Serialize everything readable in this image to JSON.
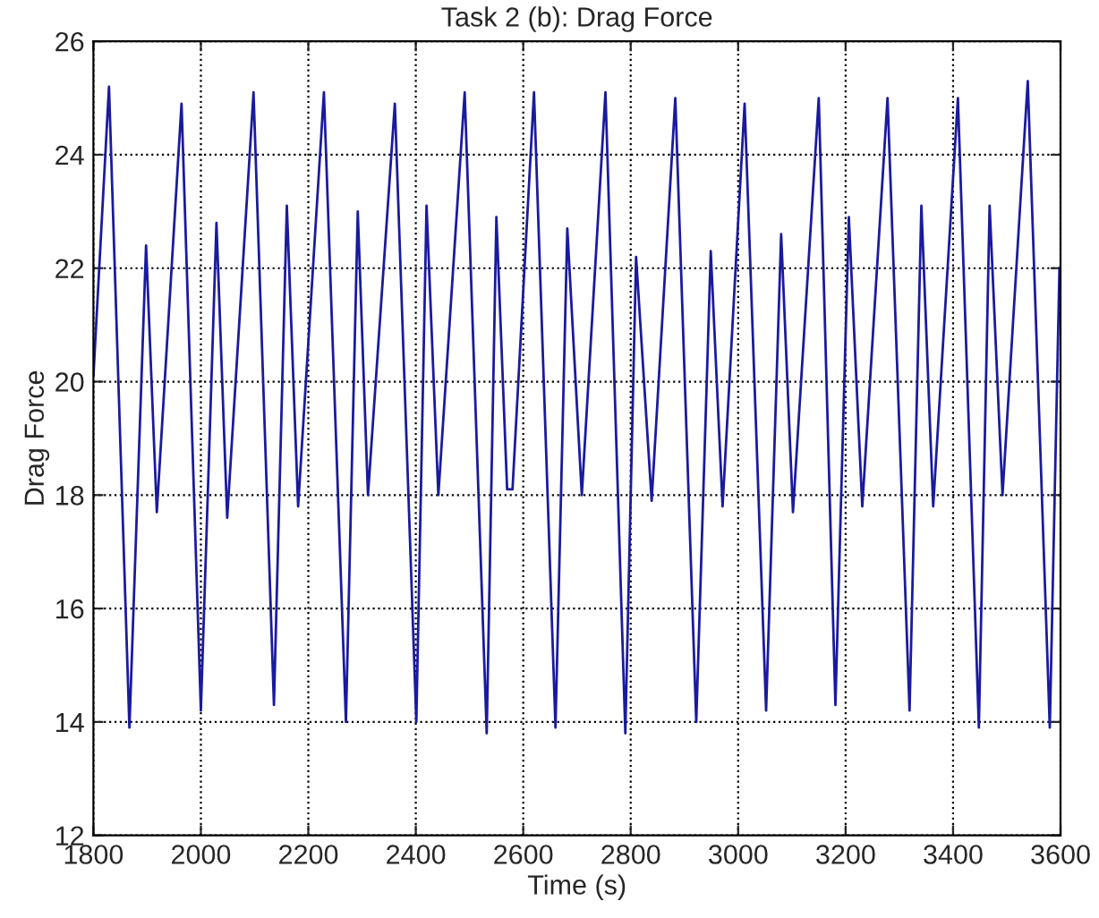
{
  "chart_data": {
    "type": "line",
    "title": "Task 2 (b): Drag Force",
    "xlabel": "Time (s)",
    "ylabel": "Drag Force",
    "xlim": [
      1800,
      3600
    ],
    "xticks": [
      1800,
      2000,
      2200,
      2400,
      2600,
      2800,
      3000,
      3200,
      3400,
      3600
    ],
    "ylim": [
      12,
      26
    ],
    "yticks": [
      12,
      14,
      16,
      18,
      20,
      22,
      24,
      26
    ],
    "grid": true,
    "marker": "none",
    "line_style": "solid",
    "series": [
      {
        "color": "#1a1aa0",
        "x": [
          1800,
          1829,
          1867,
          1898,
          1918,
          1964,
          2000,
          2029,
          2049,
          2098,
          2136,
          2160,
          2181,
          2229,
          2270,
          2292,
          2311,
          2361,
          2401,
          2420,
          2442,
          2491,
          2532,
          2550,
          2570,
          2580,
          2620,
          2660,
          2682,
          2709,
          2753,
          2790,
          2810,
          2839,
          2883,
          2922,
          2949,
          2971,
          3012,
          3052,
          3080,
          3102,
          3150,
          3181,
          3206,
          3231,
          3278,
          3319,
          3341,
          3363,
          3409,
          3448,
          3468,
          3492,
          3539,
          3580,
          3598
        ],
        "values": [
          20.1,
          25.2,
          13.9,
          22.4,
          17.7,
          24.9,
          14.2,
          22.8,
          17.6,
          25.1,
          14.3,
          23.1,
          17.8,
          25.1,
          14.0,
          23.0,
          18.0,
          24.9,
          14.0,
          23.1,
          18.0,
          25.1,
          13.8,
          22.9,
          18.1,
          18.1,
          25.1,
          13.9,
          22.7,
          18.0,
          25.1,
          13.8,
          22.2,
          17.9,
          25.0,
          14.0,
          22.3,
          17.8,
          24.9,
          14.2,
          22.6,
          17.7,
          25.0,
          14.3,
          22.9,
          17.8,
          25.0,
          14.2,
          23.1,
          17.8,
          25.0,
          13.9,
          23.1,
          18.0,
          25.3,
          13.9,
          22.0
        ]
      }
    ]
  }
}
